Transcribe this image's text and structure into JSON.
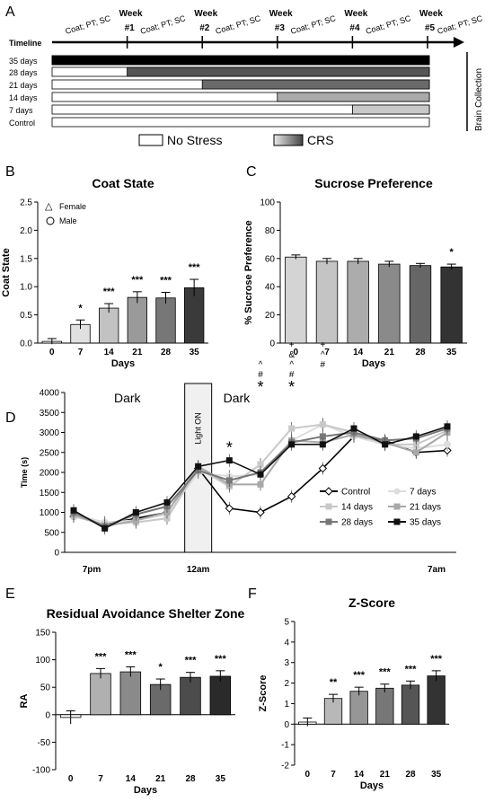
{
  "panels": {
    "A": {
      "letter": "A",
      "timeline_label": "Timeline",
      "weeks": [
        "Week #1",
        "Week #2",
        "Week #3",
        "Week #4",
        "Week #5"
      ],
      "interval_label": "Coat; PT; SC",
      "end_label": "Brain Collection",
      "rows": [
        {
          "label": "35 days",
          "stress_start_week": 0
        },
        {
          "label": "28 days",
          "stress_start_week": 1
        },
        {
          "label": "21 days",
          "stress_start_week": 2
        },
        {
          "label": "14 days",
          "stress_start_week": 3
        },
        {
          "label": "7 days",
          "stress_start_week": 4
        },
        {
          "label": "Control",
          "stress_start_week": 5
        }
      ],
      "legend": {
        "no_stress": "No Stress",
        "crs": "CRS"
      }
    },
    "B": {
      "letter": "B"
    },
    "C": {
      "letter": "C"
    },
    "D": {
      "letter": "D"
    },
    "E": {
      "letter": "E"
    },
    "F": {
      "letter": "F"
    }
  },
  "chart_data": [
    {
      "id": "B",
      "type": "bar",
      "title": "Coat State",
      "xlabel": "Days",
      "ylabel": "Coat State",
      "categories": [
        "0",
        "7",
        "14",
        "21",
        "28",
        "35"
      ],
      "values": [
        0.03,
        0.33,
        0.62,
        0.81,
        0.8,
        0.98
      ],
      "errors": [
        0.05,
        0.08,
        0.08,
        0.1,
        0.1,
        0.15
      ],
      "ylim": [
        0,
        2.5
      ],
      "yticks": [
        "0.0",
        "0.5",
        "1.0",
        "1.5",
        "2.0",
        "2.5"
      ],
      "bar_colors": [
        "#ffffff",
        "#e0e0e0",
        "#c2c2c2",
        "#9a9a9a",
        "#777777",
        "#3a3a3a"
      ],
      "significance": [
        "",
        "*",
        "***",
        "***",
        "***",
        "***"
      ],
      "legend": [
        "Female",
        "Male"
      ],
      "legend_position": "top-left"
    },
    {
      "id": "C",
      "type": "bar",
      "title": "Sucrose Preference",
      "xlabel": "Days",
      "ylabel": "% Sucrose Preference",
      "categories": [
        "0",
        "7",
        "14",
        "21",
        "28",
        "35"
      ],
      "values": [
        61,
        58,
        58,
        56,
        55,
        54
      ],
      "errors": [
        1.5,
        2,
        2,
        2,
        1.5,
        2
      ],
      "ylim": [
        0,
        100
      ],
      "yticks": [
        "0",
        "20",
        "40",
        "60",
        "80",
        "100"
      ],
      "bar_colors": [
        "#d4d4d4",
        "#c4c4c4",
        "#acacac",
        "#8a8a8a",
        "#666666",
        "#333333"
      ],
      "significance": [
        "",
        "",
        "",
        "",
        "",
        "*"
      ]
    },
    {
      "id": "D",
      "type": "line",
      "xlabel": "",
      "ylabel": "Time (s)",
      "x_tick_labels": [
        "7pm",
        "12am",
        "7am"
      ],
      "ylim": [
        0,
        4000
      ],
      "yticks": [
        "0",
        "500",
        "1000",
        "1500",
        "2000",
        "2500",
        "3000",
        "3500",
        "4000"
      ],
      "region_labels": [
        "Dark",
        "Light ON",
        "Dark"
      ],
      "x": [
        1,
        2,
        3,
        4,
        5,
        6,
        7,
        8,
        9,
        10,
        11,
        12,
        13
      ],
      "light_on_x": 5,
      "series": [
        {
          "name": "Control",
          "color": "#000000",
          "marker": "diamond",
          "values": [
            900,
            700,
            850,
            1000,
            2100,
            1100,
            1000,
            1400,
            2100,
            2900,
            2800,
            2500,
            2550
          ]
        },
        {
          "name": "7 days",
          "color": "#dddddd",
          "marker": "circle",
          "values": [
            950,
            750,
            800,
            950,
            2000,
            1900,
            1950,
            2800,
            3200,
            2900,
            2700,
            2600,
            2700
          ]
        },
        {
          "name": "14 days",
          "color": "#c8c8c8",
          "marker": "square",
          "values": [
            900,
            700,
            750,
            850,
            2100,
            1650,
            2200,
            3100,
            3200,
            3000,
            2700,
            2700,
            3050
          ]
        },
        {
          "name": "21 days",
          "color": "#a8a8a8",
          "marker": "square",
          "values": [
            950,
            650,
            800,
            1000,
            2150,
            1700,
            1700,
            2800,
            2750,
            2950,
            2750,
            2500,
            3000
          ]
        },
        {
          "name": "28 days",
          "color": "#777777",
          "marker": "square",
          "values": [
            1000,
            650,
            950,
            1150,
            2050,
            1800,
            2000,
            2750,
            2900,
            3000,
            2800,
            2850,
            3100
          ]
        },
        {
          "name": "35 days",
          "color": "#111111",
          "marker": "square",
          "values": [
            1050,
            600,
            1000,
            1250,
            2150,
            2300,
            1950,
            2700,
            2700,
            3100,
            2700,
            2900,
            3150
          ]
        }
      ],
      "annotations": [
        {
          "x": 6,
          "text": "*"
        },
        {
          "x": 7,
          "text": "^ # *"
        },
        {
          "x": 8,
          "text": "+ & ^ # *"
        },
        {
          "x": 9,
          "text": "+ ^ #"
        }
      ],
      "legend_position": "bottom-right"
    },
    {
      "id": "E",
      "type": "bar",
      "title": "Residual Avoidance Shelter Zone",
      "xlabel": "Days",
      "ylabel": "RA",
      "categories": [
        "0",
        "7",
        "14",
        "21",
        "28",
        "35"
      ],
      "values": [
        -5,
        75,
        78,
        55,
        68,
        70
      ],
      "errors": [
        12,
        9,
        9,
        10,
        9,
        10
      ],
      "ylim": [
        -100,
        150
      ],
      "yticks": [
        "-100",
        "-50",
        "0",
        "50",
        "100",
        "150"
      ],
      "bar_colors": [
        "#ffffff",
        "#b0b0b0",
        "#8a8a8a",
        "#6a6a6a",
        "#4c4c4c",
        "#2a2a2a"
      ],
      "significance": [
        "",
        "***",
        "***",
        "*",
        "***",
        "***"
      ]
    },
    {
      "id": "F",
      "type": "bar",
      "title": "Z-Score",
      "xlabel": "Days",
      "ylabel": "Z-Score",
      "categories": [
        "0",
        "7",
        "14",
        "21",
        "28",
        "35"
      ],
      "values": [
        0.1,
        1.25,
        1.6,
        1.75,
        1.9,
        2.35
      ],
      "errors": [
        0.2,
        0.2,
        0.2,
        0.2,
        0.2,
        0.25
      ],
      "ylim": [
        -2,
        5
      ],
      "yticks": [
        "-2",
        "-1",
        "0",
        "1",
        "2",
        "3",
        "4",
        "5"
      ],
      "bar_colors": [
        "#ffffff",
        "#b8b8b8",
        "#969696",
        "#777777",
        "#555555",
        "#333333"
      ],
      "significance": [
        "",
        "**",
        "***",
        "***",
        "***",
        "***"
      ]
    }
  ]
}
